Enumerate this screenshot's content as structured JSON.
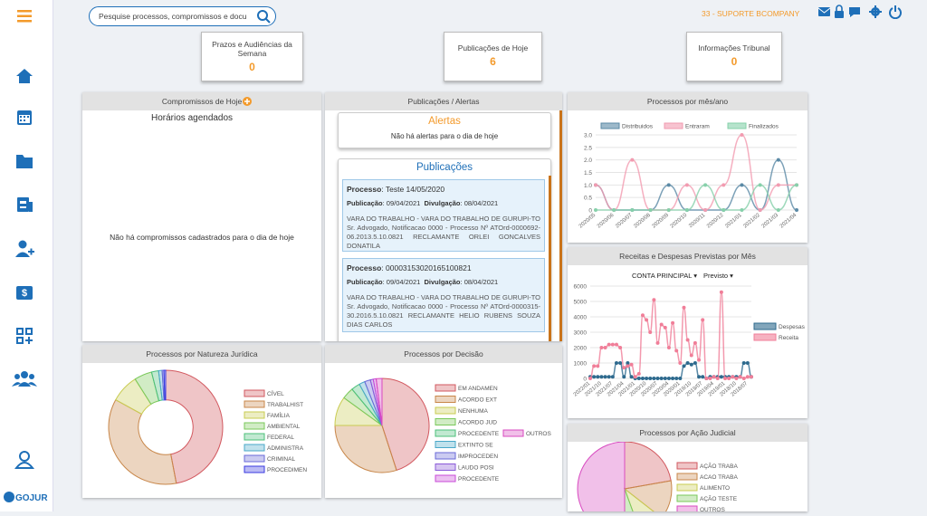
{
  "header": {
    "search_placeholder": "Pesquise processos, compromissos e docu",
    "user": "33 - SUPORTE BCOMPANY"
  },
  "sidebar": {
    "logo": "GOJUR"
  },
  "cards": [
    {
      "title": "Prazos e Audiências da Semana",
      "value": 0
    },
    {
      "title": "Publicações de Hoje",
      "value": 6
    },
    {
      "title": "Informações Tribunal",
      "value": 0
    }
  ],
  "compromissos": {
    "title": "Compromissos de Hoje",
    "subtitle": "Horários agendados",
    "empty": "Não há compromissos cadastrados para o dia de hoje"
  },
  "publicacoes": {
    "title": "Publicações / Alertas",
    "alerts_title": "Alertas",
    "alerts_empty": "Não há alertas para o dia de hoje",
    "pubs_title": "Publicações",
    "items": [
      {
        "processo_label": "Processo",
        "processo": "Teste 14/05/2020",
        "publicacao_label": "Publicação",
        "publicacao": "09/04/2021",
        "divulgacao_label": "Divulgação",
        "divulgacao": "08/04/2021",
        "text": "VARA DO TRABALHO - VARA DO TRABALHO DE GURUPI-TO Sr. Advogado, Notificacao 0000 - Processo Nº ATOrd-0000692-06.2013.5.10.0821 RECLAMANTE ORLEI GONCALVES DONATILA"
      },
      {
        "processo_label": "Processo",
        "processo": "00003153020165100821",
        "publicacao_label": "Publicação",
        "publicacao": "09/04/2021",
        "divulgacao_label": "Divulgação",
        "divulgacao": "08/04/2021",
        "text": "VARA DO TRABALHO - VARA DO TRABALHO DE GURUPI-TO Sr. Advogado, Notificacao 0000 - Processo Nº ATOrd-0000315-30.2016.5.10.0821 RECLAMANTE HELIO RUBENS SOUZA DIAS CARLOS"
      }
    ]
  },
  "chart_data": [
    {
      "type": "line",
      "title": "Processos por mês/ano",
      "legend": "top",
      "categories": [
        "2020/05",
        "2020/06",
        "2020/07",
        "2020/08",
        "2020/09",
        "2020/10",
        "2020/11",
        "2020/12",
        "2021/01",
        "2021/02",
        "2021/03",
        "2021/04"
      ],
      "ylim": [
        0,
        3
      ],
      "yticks": [
        0,
        0.5,
        {
          "value": 1,
          "label": "1.0"
        },
        1.5,
        {
          "value": 2,
          "label": "2.0"
        },
        2.5,
        {
          "value": 3,
          "label": "3.0"
        }
      ],
      "grid": true,
      "series": [
        {
          "name": "Distribuidos",
          "color": "#5b8aa6",
          "values": [
            1,
            0,
            0,
            0,
            1,
            0,
            0,
            0,
            1,
            0,
            2,
            0
          ]
        },
        {
          "name": "Entraram",
          "color": "#f29bb0",
          "values": [
            1,
            0,
            2,
            0,
            0,
            1,
            0,
            1,
            3,
            0,
            1,
            1
          ]
        },
        {
          "name": "Finalizados",
          "color": "#86d0aa",
          "values": [
            0,
            0,
            0,
            0,
            0,
            0,
            1,
            0,
            0,
            1,
            0,
            1
          ]
        }
      ]
    },
    {
      "type": "line",
      "title": "Receitas e Despesas Previstas por Mês",
      "legend": "right",
      "filters": [
        "CONTA PRINCIPAL",
        "Previsto"
      ],
      "categories": [
        "2022/01",
        null,
        null,
        "2021/10",
        null,
        null,
        "2021/07",
        null,
        null,
        "2021/04",
        null,
        null,
        "2021/01",
        null,
        null,
        "2020/10",
        null,
        null,
        "2020/07",
        null,
        null,
        "2020/04",
        null,
        null,
        "2020/01",
        null,
        null,
        "2019/10",
        null,
        null,
        "2019/07",
        null,
        null,
        "2019/04",
        null,
        null,
        "2019/01",
        null,
        null,
        "2018/10",
        null,
        null,
        "2018/07",
        null
      ],
      "ylim": [
        0,
        6000
      ],
      "yticks": [
        0,
        1000,
        2000,
        3000,
        4000,
        5000,
        6000
      ],
      "grid": true,
      "series": [
        {
          "name": "Despesas",
          "color": "#2e6a8e",
          "values": [
            100,
            100,
            100,
            100,
            100,
            100,
            100,
            1000,
            1000,
            100,
            1000,
            100,
            0,
            0,
            0,
            0,
            0,
            0,
            0,
            0,
            0,
            0,
            0,
            0,
            0,
            800,
            1000,
            900,
            1000,
            100,
            100,
            0,
            100,
            100,
            100,
            100,
            100,
            100,
            100,
            100,
            100,
            1000,
            1000,
            100
          ]
        },
        {
          "name": "Receita",
          "color": "#f07e98",
          "values": [
            0,
            800,
            800,
            2000,
            2000,
            2200,
            2200,
            2200,
            2000,
            700,
            800,
            900,
            100,
            300,
            4100,
            3800,
            3000,
            5100,
            2300,
            3500,
            3300,
            2000,
            3600,
            1800,
            1000,
            4600,
            2500,
            1500,
            2300,
            1200,
            3800,
            0,
            0,
            100,
            0,
            5600,
            0,
            0,
            100,
            0,
            100,
            0,
            100,
            100
          ]
        }
      ]
    },
    {
      "type": "doughnut",
      "title": "Processos por Natureza Jurídica",
      "categories": [
        "CÍVEL",
        "TRABALHIST",
        "FAMÍLIA",
        "AMBIENTAL",
        "FEDERAL",
        "ADMINISTRA",
        "CRIMINAL",
        "PROCEDIMEN"
      ],
      "values": [
        47,
        36,
        8,
        5,
        2,
        1,
        0.5,
        0.5
      ],
      "colors": [
        "#d2585f",
        "#c8874a",
        "#c9cc52",
        "#7ac85a",
        "#4cc07a",
        "#4aa8c8",
        "#6a6ad8",
        "#3a3ae0"
      ]
    },
    {
      "type": "pie",
      "title": "Processos por Decisão",
      "categories": [
        "EM ANDAMEN",
        "ACORDO EXT",
        "NENHUMA",
        "ACORDO JUD",
        "PROCEDENTE",
        "EXTINTO SE",
        "IMPROCEDEN",
        "LAUDO POSI",
        "PROCEDENTE",
        "OUTROS"
      ],
      "values": [
        45,
        30,
        10,
        4,
        3,
        2,
        2,
        1,
        1,
        2
      ],
      "colors": [
        "#d2585f",
        "#c8874a",
        "#c9cc52",
        "#7ac85a",
        "#4cc07a",
        "#4aa8c8",
        "#6a6ad8",
        "#8a5ad8",
        "#c84ad8",
        "#d84ac0"
      ]
    },
    {
      "type": "pie",
      "title": "Processos por Ação Judicial",
      "categories": [
        "AÇÃO TRABA",
        "ACAO TRABA",
        "ALIMENTO",
        "AÇÃO TESTE",
        "OUTROS"
      ],
      "values": [
        20,
        12,
        8,
        5,
        45
      ],
      "colors": [
        "#d2585f",
        "#c8874a",
        "#c9cc52",
        "#7ac85a",
        "#d84ac0"
      ]
    }
  ]
}
